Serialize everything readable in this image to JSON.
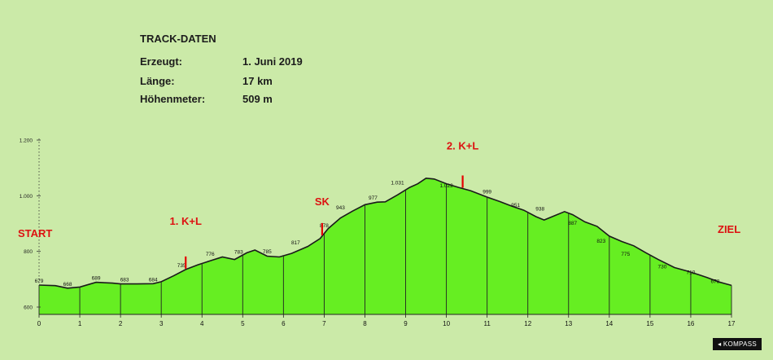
{
  "track_info": {
    "title": "TRACK-DATEN",
    "rows": [
      {
        "label": "Erzeugt:",
        "value": "1. Juni 2019"
      },
      {
        "label": "Länge:",
        "value": "17 km"
      },
      {
        "label": "Höhenmeter:",
        "value": "509 m"
      }
    ]
  },
  "brand": "KOMPASS",
  "colors": {
    "background": "#cbeaa8",
    "fill": "#66ee22",
    "line": "#1a1a1a",
    "marker": "#e60000",
    "label_red": "#dd1111"
  },
  "chart_data": {
    "type": "area",
    "xlim": [
      0,
      17
    ],
    "ylim": [
      550,
      1250
    ],
    "x_ticks": [
      0,
      1,
      2,
      3,
      4,
      5,
      6,
      7,
      8,
      9,
      10,
      11,
      12,
      13,
      14,
      15,
      16,
      17
    ],
    "x_tick_labels": [
      "0",
      "1",
      "2",
      "3",
      "4",
      "5",
      "6",
      "7",
      "8",
      "9",
      "10",
      "11",
      "12",
      "13",
      "14",
      "15",
      "16",
      "17"
    ],
    "y_ticks": [
      600,
      800,
      1000,
      1200
    ],
    "y_tick_labels": [
      "600",
      "800",
      "1.000",
      "1.200"
    ],
    "grid": {
      "vertical": true,
      "horizontal": false
    },
    "profile": [
      {
        "x": 0.0,
        "y": 679
      },
      {
        "x": 0.4,
        "y": 677
      },
      {
        "x": 0.7,
        "y": 668
      },
      {
        "x": 1.0,
        "y": 672
      },
      {
        "x": 1.4,
        "y": 689
      },
      {
        "x": 1.8,
        "y": 686
      },
      {
        "x": 2.0,
        "y": 683
      },
      {
        "x": 2.4,
        "y": 683
      },
      {
        "x": 2.8,
        "y": 684
      },
      {
        "x": 3.0,
        "y": 691
      },
      {
        "x": 3.3,
        "y": 712
      },
      {
        "x": 3.6,
        "y": 735
      },
      {
        "x": 3.9,
        "y": 752
      },
      {
        "x": 4.2,
        "y": 766
      },
      {
        "x": 4.5,
        "y": 780
      },
      {
        "x": 4.8,
        "y": 771
      },
      {
        "x": 5.1,
        "y": 795
      },
      {
        "x": 5.3,
        "y": 805
      },
      {
        "x": 5.6,
        "y": 783
      },
      {
        "x": 5.9,
        "y": 780
      },
      {
        "x": 6.2,
        "y": 793
      },
      {
        "x": 6.6,
        "y": 818
      },
      {
        "x": 6.9,
        "y": 846
      },
      {
        "x": 7.1,
        "y": 882
      },
      {
        "x": 7.4,
        "y": 920
      },
      {
        "x": 7.7,
        "y": 945
      },
      {
        "x": 8.0,
        "y": 968
      },
      {
        "x": 8.3,
        "y": 977
      },
      {
        "x": 8.5,
        "y": 978
      },
      {
        "x": 8.8,
        "y": 1003
      },
      {
        "x": 9.1,
        "y": 1030
      },
      {
        "x": 9.3,
        "y": 1043
      },
      {
        "x": 9.5,
        "y": 1063
      },
      {
        "x": 9.7,
        "y": 1060
      },
      {
        "x": 10.0,
        "y": 1043
      },
      {
        "x": 10.3,
        "y": 1030
      },
      {
        "x": 10.6,
        "y": 1018
      },
      {
        "x": 11.0,
        "y": 995
      },
      {
        "x": 11.3,
        "y": 980
      },
      {
        "x": 11.6,
        "y": 963
      },
      {
        "x": 11.9,
        "y": 948
      },
      {
        "x": 12.2,
        "y": 925
      },
      {
        "x": 12.4,
        "y": 913
      },
      {
        "x": 12.6,
        "y": 925
      },
      {
        "x": 12.9,
        "y": 943
      },
      {
        "x": 13.1,
        "y": 932
      },
      {
        "x": 13.4,
        "y": 906
      },
      {
        "x": 13.7,
        "y": 890
      },
      {
        "x": 14.0,
        "y": 855
      },
      {
        "x": 14.3,
        "y": 836
      },
      {
        "x": 14.6,
        "y": 820
      },
      {
        "x": 14.9,
        "y": 795
      },
      {
        "x": 15.2,
        "y": 771
      },
      {
        "x": 15.6,
        "y": 742
      },
      {
        "x": 15.9,
        "y": 730
      },
      {
        "x": 16.2,
        "y": 716
      },
      {
        "x": 16.4,
        "y": 706
      },
      {
        "x": 16.7,
        "y": 690
      },
      {
        "x": 17.0,
        "y": 678
      }
    ],
    "point_labels": [
      {
        "x": 0.0,
        "y": 679,
        "text": "679"
      },
      {
        "x": 0.7,
        "y": 668,
        "text": "668"
      },
      {
        "x": 1.4,
        "y": 689,
        "text": "689"
      },
      {
        "x": 2.1,
        "y": 683,
        "text": "683"
      },
      {
        "x": 2.8,
        "y": 684,
        "text": "684"
      },
      {
        "x": 3.5,
        "y": 735,
        "text": "735"
      },
      {
        "x": 4.2,
        "y": 776,
        "text": "776"
      },
      {
        "x": 4.9,
        "y": 783,
        "text": "783"
      },
      {
        "x": 5.6,
        "y": 785,
        "text": "785"
      },
      {
        "x": 6.3,
        "y": 817,
        "text": "817"
      },
      {
        "x": 7.0,
        "y": 878,
        "text": "878"
      },
      {
        "x": 7.4,
        "y": 943,
        "text": "943"
      },
      {
        "x": 8.2,
        "y": 977,
        "text": "977"
      },
      {
        "x": 8.8,
        "y": 1031,
        "text": "1.031"
      },
      {
        "x": 10.0,
        "y": 1022,
        "text": "1.022"
      },
      {
        "x": 11.0,
        "y": 999,
        "text": "999"
      },
      {
        "x": 11.7,
        "y": 951,
        "text": "951"
      },
      {
        "x": 12.3,
        "y": 938,
        "text": "938"
      },
      {
        "x": 13.1,
        "y": 887,
        "text": "887"
      },
      {
        "x": 13.8,
        "y": 823,
        "text": "823"
      },
      {
        "x": 14.4,
        "y": 775,
        "text": "775"
      },
      {
        "x": 15.3,
        "y": 730,
        "text": "730"
      },
      {
        "x": 16.0,
        "y": 710,
        "text": "710"
      },
      {
        "x": 16.6,
        "y": 678,
        "text": "678"
      }
    ],
    "markers": [
      {
        "x": 3.6,
        "label": "1. K+L"
      },
      {
        "x": 6.95,
        "label": "SK"
      },
      {
        "x": 10.4,
        "label": "2. K+L"
      }
    ],
    "endpoints": {
      "start": "START",
      "end": "ZIEL"
    }
  }
}
